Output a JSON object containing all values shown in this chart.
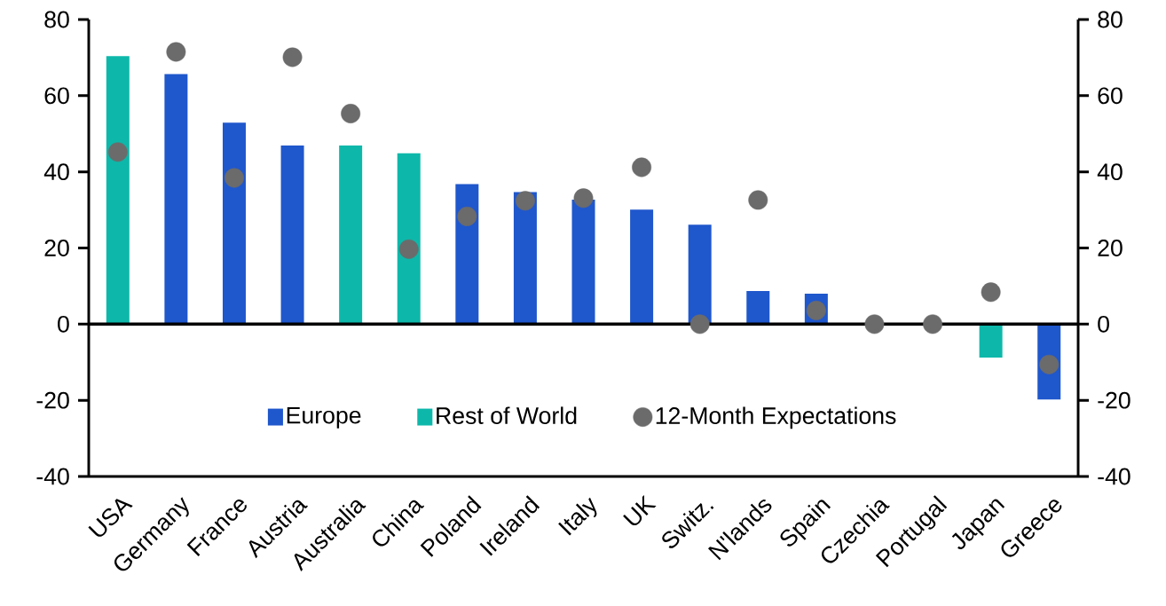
{
  "chart_data": {
    "type": "bar",
    "categories": [
      "USA",
      "Germany",
      "France",
      "Austria",
      "Australia",
      "China",
      "Poland",
      "Ireland",
      "Italy",
      "UK",
      "Switz.",
      "N'lands",
      "Spain",
      "Czechia",
      "Portugal",
      "Japan",
      "Greece"
    ],
    "series": [
      {
        "name": "Europe",
        "color": "#1f57cc",
        "values": [
          null,
          65.7,
          52.9,
          46.9,
          null,
          null,
          36.8,
          34.7,
          32.7,
          30.1,
          26.1,
          8.7,
          8.0,
          null,
          null,
          null,
          -19.8
        ]
      },
      {
        "name": "Rest of World",
        "color": "#0db8aa",
        "values": [
          70.4,
          null,
          null,
          null,
          46.9,
          44.9,
          null,
          null,
          null,
          null,
          null,
          null,
          null,
          null,
          null,
          -8.8,
          null
        ]
      },
      {
        "name": "12-Month Expectations",
        "type": "scatter",
        "color": "#6b6b6b",
        "marker": "circle",
        "x": [
          "USA",
          "Germany",
          "France",
          "Austria",
          "Australia",
          "China",
          "Poland",
          "Ireland",
          "Italy",
          "UK",
          "Switz.",
          "N'lands",
          "Spain",
          "Czechia",
          "Portugal",
          "Japan",
          "Greece"
        ],
        "values": [
          45.2,
          71.5,
          38.4,
          70.1,
          55.3,
          19.7,
          28.3,
          32.4,
          33.1,
          41.2,
          0,
          32.6,
          3.6,
          0,
          0,
          8.4,
          -10.6
        ]
      }
    ],
    "ylim": [
      -40,
      80
    ],
    "yticks": [
      -40,
      -20,
      0,
      20,
      40,
      60,
      80
    ],
    "y2lim": [
      -40,
      80
    ],
    "y2ticks": [
      -40,
      -20,
      0,
      20,
      40,
      60,
      80
    ],
    "ref_lines": [
      {
        "axis": "y",
        "value": 0,
        "color": "#000000"
      }
    ],
    "legend": "bottom",
    "grid": false
  }
}
